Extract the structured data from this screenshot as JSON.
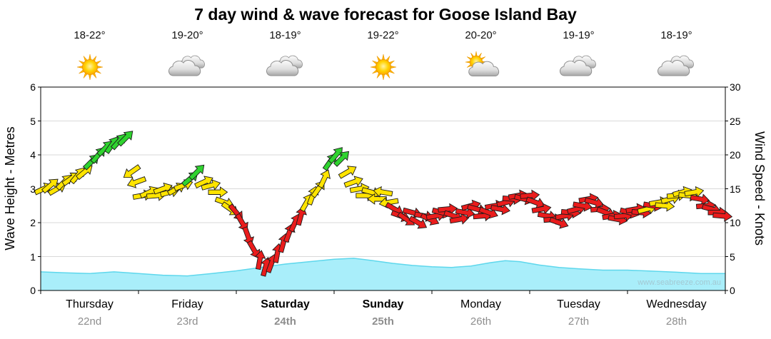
{
  "title": "7 day wind & wave forecast for Goose Island Bay",
  "watermark": "www.seabreeze.com.au",
  "axes": {
    "left_label": "Wave Height - Metres",
    "right_label": "Wind Speed - Knots",
    "left_ticks": [
      0,
      1,
      2,
      3,
      4,
      5,
      6
    ],
    "right_ticks": [
      0,
      5,
      10,
      15,
      20,
      25,
      30
    ]
  },
  "days": [
    {
      "name": "Thursday",
      "date": "22nd",
      "temp": "18-22°",
      "icon": "sunny",
      "weekend": false
    },
    {
      "name": "Friday",
      "date": "23rd",
      "temp": "19-20°",
      "icon": "cloudy",
      "weekend": false
    },
    {
      "name": "Saturday",
      "date": "24th",
      "temp": "18-19°",
      "icon": "cloudy",
      "weekend": true
    },
    {
      "name": "Sunday",
      "date": "25th",
      "temp": "19-22°",
      "icon": "sunny",
      "weekend": true
    },
    {
      "name": "Monday",
      "date": "26th",
      "temp": "20-20°",
      "icon": "partly-cloudy",
      "weekend": false
    },
    {
      "name": "Tuesday",
      "date": "27th",
      "temp": "19-19°",
      "icon": "cloudy",
      "weekend": false
    },
    {
      "name": "Wednesday",
      "date": "28th",
      "temp": "18-19°",
      "icon": "cloudy",
      "weekend": false
    }
  ],
  "colors": {
    "background": "#ffffff",
    "grid": "#d9d9d9",
    "axis": "#000000",
    "wave_fill": "#a9eefa",
    "wave_line": "#5ed7ec",
    "arrow_yellow": "#ffe400",
    "arrow_green": "#2fd32f",
    "arrow_red": "#ea1c1c",
    "arrow_outline": "#1a1a1a",
    "date_text": "#8e8e8e",
    "watermark_text": "#a3c9d3",
    "sun_core": "#ffd200",
    "sun_ray": "#ffb300",
    "cloud_stroke": "#8f8f8f"
  },
  "chart_data": {
    "type": [
      "area",
      "wind-arrows"
    ],
    "title": "7 day wind & wave forecast for Goose Island Bay",
    "x_unit": "days, Thursday 22nd through Wednesday 28th",
    "x_range": [
      0,
      7
    ],
    "grid": true,
    "wave_height": {
      "ylabel": "Wave Height - Metres",
      "ylim": [
        0,
        6
      ],
      "points": [
        [
          0,
          0.55
        ],
        [
          0.25,
          0.52
        ],
        [
          0.5,
          0.5
        ],
        [
          0.75,
          0.55
        ],
        [
          1.0,
          0.5
        ],
        [
          1.25,
          0.45
        ],
        [
          1.5,
          0.43
        ],
        [
          1.75,
          0.5
        ],
        [
          2.0,
          0.58
        ],
        [
          2.25,
          0.68
        ],
        [
          2.5,
          0.78
        ],
        [
          2.75,
          0.85
        ],
        [
          3.0,
          0.92
        ],
        [
          3.2,
          0.95
        ],
        [
          3.4,
          0.88
        ],
        [
          3.6,
          0.8
        ],
        [
          3.8,
          0.74
        ],
        [
          4.0,
          0.7
        ],
        [
          4.2,
          0.68
        ],
        [
          4.4,
          0.72
        ],
        [
          4.6,
          0.82
        ],
        [
          4.75,
          0.88
        ],
        [
          4.9,
          0.85
        ],
        [
          5.1,
          0.75
        ],
        [
          5.3,
          0.68
        ],
        [
          5.5,
          0.64
        ],
        [
          5.75,
          0.6
        ],
        [
          6.0,
          0.6
        ],
        [
          6.25,
          0.57
        ],
        [
          6.5,
          0.54
        ],
        [
          6.75,
          0.5
        ],
        [
          7.0,
          0.5
        ]
      ]
    },
    "wind_speed": {
      "ylabel": "Wind Speed - Knots",
      "ylim": [
        0,
        30
      ],
      "arrow_colors": {
        "y": "yellow",
        "g": "green",
        "r": "red"
      },
      "direction_note": "angle in degrees, 0 = arrow points right, 90 = up",
      "points": [
        [
          0.03,
          15,
          "y",
          25
        ],
        [
          0.1,
          15.5,
          "y",
          40
        ],
        [
          0.17,
          15,
          "y",
          30
        ],
        [
          0.24,
          16,
          "y",
          45
        ],
        [
          0.31,
          16.5,
          "y",
          35
        ],
        [
          0.38,
          17,
          "y",
          50
        ],
        [
          0.45,
          17.5,
          "y",
          40
        ],
        [
          0.52,
          19,
          "g",
          45
        ],
        [
          0.59,
          20,
          "g",
          50
        ],
        [
          0.66,
          21,
          "g",
          45
        ],
        [
          0.73,
          21.5,
          "g",
          55
        ],
        [
          0.8,
          22,
          "g",
          48
        ],
        [
          0.87,
          22.5,
          "g",
          45
        ],
        [
          0.93,
          17.5,
          "y",
          215
        ],
        [
          0.98,
          16,
          "y",
          200
        ],
        [
          1.04,
          14,
          "y",
          10
        ],
        [
          1.11,
          14.5,
          "y",
          25
        ],
        [
          1.18,
          14,
          "y",
          5
        ],
        [
          1.25,
          15,
          "y",
          20
        ],
        [
          1.32,
          14.5,
          "y",
          15
        ],
        [
          1.39,
          15,
          "y",
          30
        ],
        [
          1.46,
          15.5,
          "y",
          20
        ],
        [
          1.53,
          16.5,
          "g",
          40
        ],
        [
          1.6,
          17.5,
          "g",
          45
        ],
        [
          1.67,
          16,
          "y",
          25
        ],
        [
          1.74,
          15.5,
          "y",
          15
        ],
        [
          1.81,
          14.5,
          "y",
          0
        ],
        [
          1.88,
          13,
          "y",
          -20
        ],
        [
          1.94,
          12,
          "y",
          -35
        ],
        [
          2.0,
          11.5,
          "r",
          -50
        ],
        [
          2.06,
          10,
          "r",
          -60
        ],
        [
          2.12,
          8,
          "r",
          -70
        ],
        [
          2.18,
          6,
          "r",
          -60
        ],
        [
          2.24,
          4.5,
          "r",
          80
        ],
        [
          2.3,
          3.5,
          "r",
          75
        ],
        [
          2.36,
          4,
          "r",
          70
        ],
        [
          2.42,
          5.5,
          "r",
          80
        ],
        [
          2.48,
          7,
          "r",
          75
        ],
        [
          2.54,
          8.5,
          "r",
          70
        ],
        [
          2.6,
          10,
          "r",
          65
        ],
        [
          2.66,
          11,
          "r",
          75
        ],
        [
          2.72,
          13,
          "y",
          60
        ],
        [
          2.78,
          14,
          "y",
          70
        ],
        [
          2.84,
          15,
          "y",
          55
        ],
        [
          2.9,
          16.5,
          "y",
          65
        ],
        [
          2.96,
          19,
          "g",
          55
        ],
        [
          3.02,
          20,
          "g",
          50
        ],
        [
          3.08,
          19.5,
          "g",
          45
        ],
        [
          3.14,
          17.5,
          "y",
          30
        ],
        [
          3.2,
          16,
          "y",
          20
        ],
        [
          3.26,
          15,
          "y",
          10
        ],
        [
          3.32,
          14,
          "y",
          0
        ],
        [
          3.38,
          14.5,
          "y",
          -15
        ],
        [
          3.44,
          13.5,
          "y",
          180
        ],
        [
          3.5,
          14.5,
          "y",
          170
        ],
        [
          3.56,
          13,
          "y",
          190
        ],
        [
          3.62,
          12,
          "r",
          -30
        ],
        [
          3.68,
          11,
          "r",
          -20
        ],
        [
          3.74,
          10.5,
          "r",
          -35
        ],
        [
          3.8,
          11.5,
          "r",
          -15
        ],
        [
          3.86,
          10,
          "r",
          -30
        ],
        [
          3.92,
          11,
          "r",
          -10
        ],
        [
          3.98,
          10.5,
          "r",
          -25
        ],
        [
          4.04,
          11,
          "r",
          10
        ],
        [
          4.1,
          11.5,
          "r",
          -15
        ],
        [
          4.16,
          12,
          "r",
          5
        ],
        [
          4.22,
          11,
          "r",
          -20
        ],
        [
          4.28,
          10.5,
          "r",
          10
        ],
        [
          4.34,
          11.5,
          "r",
          -10
        ],
        [
          4.4,
          12.5,
          "r",
          15
        ],
        [
          4.46,
          12,
          "r",
          -15
        ],
        [
          4.52,
          11,
          "r",
          5
        ],
        [
          4.58,
          11.5,
          "r",
          -20
        ],
        [
          4.64,
          12.5,
          "r",
          10
        ],
        [
          4.7,
          12,
          "r",
          -10
        ],
        [
          4.76,
          13,
          "r",
          15
        ],
        [
          4.82,
          13.5,
          "r",
          -5
        ],
        [
          4.88,
          14,
          "r",
          10
        ],
        [
          4.94,
          13.5,
          "r",
          -15
        ],
        [
          5.0,
          14,
          "r",
          5
        ],
        [
          5.06,
          13,
          "r",
          -20
        ],
        [
          5.12,
          12,
          "r",
          10
        ],
        [
          5.18,
          11,
          "r",
          -10
        ],
        [
          5.24,
          10.5,
          "r",
          5
        ],
        [
          5.3,
          10,
          "r",
          -20
        ],
        [
          5.36,
          11,
          "r",
          10
        ],
        [
          5.42,
          11.5,
          "r",
          -5
        ],
        [
          5.48,
          12,
          "r",
          15
        ],
        [
          5.54,
          12.5,
          "r",
          -10
        ],
        [
          5.6,
          13.5,
          "r",
          10
        ],
        [
          5.66,
          13,
          "r",
          -15
        ],
        [
          5.72,
          12,
          "r",
          5
        ],
        [
          5.78,
          11.5,
          "r",
          -20
        ],
        [
          5.84,
          11,
          "r",
          10
        ],
        [
          5.9,
          10.5,
          "r",
          -10
        ],
        [
          5.96,
          11,
          "r",
          5
        ],
        [
          6.02,
          11.5,
          "r",
          -15
        ],
        [
          6.08,
          12,
          "r",
          10
        ],
        [
          6.14,
          11.5,
          "r",
          -5
        ],
        [
          6.2,
          12,
          "y",
          15
        ],
        [
          6.26,
          12.5,
          "r",
          -10
        ],
        [
          6.32,
          13,
          "y",
          10
        ],
        [
          6.38,
          12.5,
          "y",
          -5
        ],
        [
          6.44,
          13.5,
          "y",
          15
        ],
        [
          6.5,
          14,
          "y",
          5
        ],
        [
          6.56,
          14.5,
          "y",
          15
        ],
        [
          6.62,
          14,
          "y",
          -5
        ],
        [
          6.68,
          14.5,
          "y",
          10
        ],
        [
          6.74,
          13.5,
          "r",
          -10
        ],
        [
          6.8,
          12.5,
          "r",
          5
        ],
        [
          6.86,
          12,
          "r",
          -15
        ],
        [
          6.92,
          11.5,
          "r",
          0
        ],
        [
          6.97,
          11,
          "r",
          -5
        ]
      ]
    }
  }
}
